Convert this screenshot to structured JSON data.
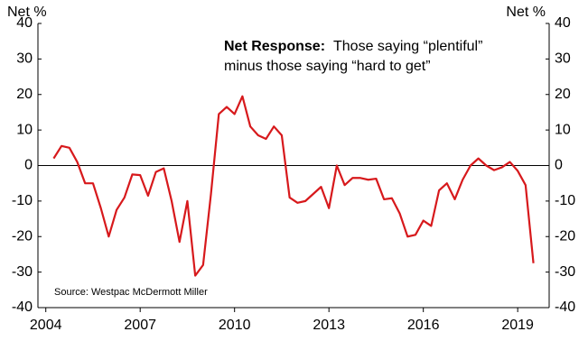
{
  "chart_data": {
    "type": "line",
    "y_label_left": "Net %",
    "y_label_right": "Net %",
    "annotation_bold": "Net Response:",
    "annotation_lines": [
      "Those saying “plentiful”",
      "minus those saying “hard to get”"
    ],
    "source": "Source: Westpac McDermott Miller",
    "x": [
      2004.25,
      2004.5,
      2004.75,
      2005,
      2005.25,
      2005.5,
      2005.75,
      2006,
      2006.25,
      2006.5,
      2006.75,
      2007,
      2007.25,
      2007.5,
      2007.75,
      2008,
      2008.25,
      2008.5,
      2008.75,
      2009,
      2009.25,
      2009.5,
      2009.75,
      2010,
      2010.25,
      2010.5,
      2010.75,
      2011,
      2011.25,
      2011.5,
      2011.75,
      2012,
      2012.25,
      2012.5,
      2012.75,
      2013,
      2013.25,
      2013.5,
      2013.75,
      2014,
      2014.25,
      2014.5,
      2014.75,
      2015,
      2015.25,
      2015.5,
      2015.75,
      2016,
      2016.25,
      2016.5,
      2016.75,
      2017,
      2017.25,
      2017.5,
      2017.75,
      2018,
      2018.25,
      2018.5,
      2018.75,
      2019,
      2019.25,
      2019.5
    ],
    "series": [
      {
        "name": "Net Response",
        "color": "#d7191c",
        "values": [
          2,
          5.5,
          5,
          1,
          -5,
          -5,
          -12,
          -20,
          -12.5,
          -9,
          -2.5,
          -2.7,
          -8.5,
          -1.8,
          -0.8,
          -10,
          -21.5,
          -10,
          -31,
          -28,
          -8,
          14.5,
          16.5,
          14.5,
          19.5,
          11,
          8.5,
          7.5,
          11,
          8.5,
          -9,
          -10.5,
          -10,
          -8,
          -6,
          -12,
          0,
          -5.5,
          -3.5,
          -3.5,
          -4,
          -3.7,
          -9.5,
          -9.2,
          -13.5,
          -20,
          -19.5,
          -15.5,
          -17,
          -7,
          -5,
          -9.5,
          -4,
          0,
          2,
          0,
          -1.3,
          -0.5,
          1,
          -1.5,
          -5.5,
          -27.5
        ]
      }
    ],
    "xlim": [
      2003.75,
      2020
    ],
    "xticks": [
      2004,
      2007,
      2010,
      2013,
      2016,
      2019
    ],
    "ylim": [
      -40,
      40
    ],
    "yticks": [
      -40,
      -30,
      -20,
      -10,
      0,
      10,
      20,
      30,
      40
    ],
    "y2lim": [
      -40,
      40
    ],
    "y2ticks": [
      -40,
      -30,
      -20,
      -10,
      0,
      10,
      20,
      30,
      40
    ],
    "reference_line": 0
  }
}
